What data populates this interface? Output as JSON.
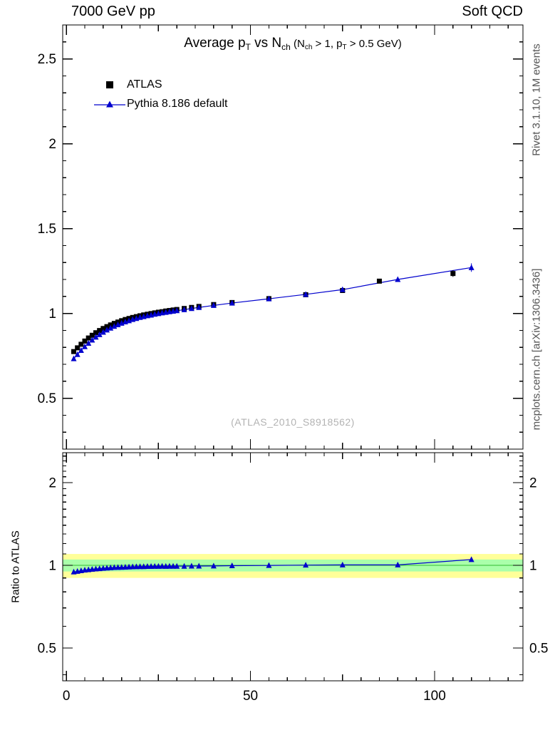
{
  "header": {
    "left": "7000 GeV pp",
    "right": "Soft QCD"
  },
  "side_labels": {
    "top_right": "Rivet 3.1.10,  1M events",
    "bottom_right": "mcplots.cern.ch [arXiv:1306.3436]"
  },
  "watermark": "(ATLAS_2010_S8918562)",
  "ratio_label": "Ratio to ATLAS",
  "legend": [
    {
      "label": "ATLAS",
      "marker": "black-square"
    },
    {
      "label": "Pythia 8.186 default",
      "marker": "blue-triangle-line"
    }
  ],
  "colors": {
    "atlas": "#000000",
    "pythia": "#0000cd",
    "band_outer": "#ffff99",
    "band_inner": "#aaffaa",
    "band_line": "#33bb33",
    "frame": "#000000"
  },
  "chart_data": {
    "type": "scatter",
    "title": "Average p_T vs N_ch (N_ch > 1, p_T > 0.5 GeV)",
    "title_parts": [
      {
        "t": "Average p"
      },
      {
        "t": "T",
        "sub": true
      },
      {
        "t": " vs N"
      },
      {
        "t": "ch",
        "sub": true
      },
      {
        "t": " (N",
        "small": true
      },
      {
        "t": "ch",
        "sub": true,
        "small": true
      },
      {
        "t": " > 1, p",
        "small": true
      },
      {
        "t": "T",
        "sub": true,
        "small": true
      },
      {
        "t": " > 0.5 GeV)",
        "small": true
      }
    ],
    "xlabel": "",
    "xlim": [
      -1,
      124
    ],
    "xticks": [
      0,
      50,
      100
    ],
    "main_panel": {
      "scale": "linear",
      "ylim": [
        0.2,
        2.7
      ],
      "yticks": [
        0.5,
        1,
        1.5,
        2,
        2.5
      ]
    },
    "ratio_panel": {
      "scale": "log",
      "ylim": [
        0.38,
        2.57
      ],
      "yticks": [
        2,
        1,
        0.5
      ],
      "bands": {
        "outer": [
          0.9,
          1.1
        ],
        "inner": [
          0.95,
          1.05
        ]
      }
    },
    "series": [
      {
        "name": "ATLAS",
        "marker": "square",
        "color": "#000000",
        "line": false,
        "yerr": 0.01,
        "yerr_last": 0.02,
        "x": [
          2,
          3,
          4,
          5,
          6,
          7,
          8,
          9,
          10,
          11,
          12,
          13,
          14,
          15,
          16,
          17,
          18,
          19,
          20,
          21,
          22,
          23,
          24,
          25,
          26,
          27,
          28,
          29,
          30,
          32,
          34,
          36,
          40,
          45,
          55,
          65,
          75,
          85,
          105
        ],
        "y": [
          0.775,
          0.797,
          0.818,
          0.837,
          0.855,
          0.871,
          0.886,
          0.899,
          0.911,
          0.922,
          0.932,
          0.941,
          0.949,
          0.957,
          0.964,
          0.97,
          0.976,
          0.981,
          0.986,
          0.991,
          0.995,
          0.999,
          1.003,
          1.007,
          1.01,
          1.014,
          1.017,
          1.02,
          1.023,
          1.029,
          1.035,
          1.041,
          1.052,
          1.064,
          1.087,
          1.11,
          1.135,
          1.19,
          1.235
        ]
      },
      {
        "name": "Pythia 8.186 default",
        "marker": "triangle",
        "color": "#0000cd",
        "line": true,
        "yerr": 0.006,
        "yerr_last": 0.025,
        "x": [
          2,
          3,
          4,
          5,
          6,
          7,
          8,
          9,
          10,
          11,
          12,
          13,
          14,
          15,
          16,
          17,
          18,
          19,
          20,
          21,
          22,
          23,
          24,
          25,
          26,
          27,
          28,
          29,
          30,
          32,
          34,
          36,
          40,
          45,
          55,
          65,
          75,
          90,
          110
        ],
        "y": [
          0.733,
          0.758,
          0.782,
          0.804,
          0.824,
          0.843,
          0.86,
          0.875,
          0.889,
          0.902,
          0.913,
          0.924,
          0.933,
          0.942,
          0.95,
          0.957,
          0.964,
          0.97,
          0.976,
          0.981,
          0.986,
          0.99,
          0.995,
          0.999,
          1.003,
          1.006,
          1.01,
          1.013,
          1.016,
          1.022,
          1.029,
          1.035,
          1.047,
          1.061,
          1.086,
          1.112,
          1.14,
          1.2,
          1.27
        ]
      }
    ],
    "ratio_series": {
      "name": "Pythia 8.186 default / ATLAS",
      "color": "#0000cd",
      "x": [
        2,
        3,
        4,
        5,
        6,
        7,
        8,
        9,
        10,
        11,
        12,
        13,
        14,
        15,
        16,
        17,
        18,
        19,
        20,
        21,
        22,
        23,
        24,
        25,
        26,
        27,
        28,
        29,
        30,
        32,
        34,
        36,
        40,
        45,
        55,
        65,
        75,
        90,
        110
      ],
      "y": [
        0.946,
        0.951,
        0.956,
        0.961,
        0.964,
        0.968,
        0.971,
        0.973,
        0.976,
        0.978,
        0.98,
        0.982,
        0.983,
        0.984,
        0.985,
        0.987,
        0.988,
        0.989,
        0.99,
        0.99,
        0.991,
        0.991,
        0.992,
        0.992,
        0.993,
        0.992,
        0.993,
        0.993,
        0.993,
        0.993,
        0.994,
        0.994,
        0.995,
        0.997,
        0.999,
        1.002,
        1.004,
        1.004,
        1.05
      ]
    }
  }
}
